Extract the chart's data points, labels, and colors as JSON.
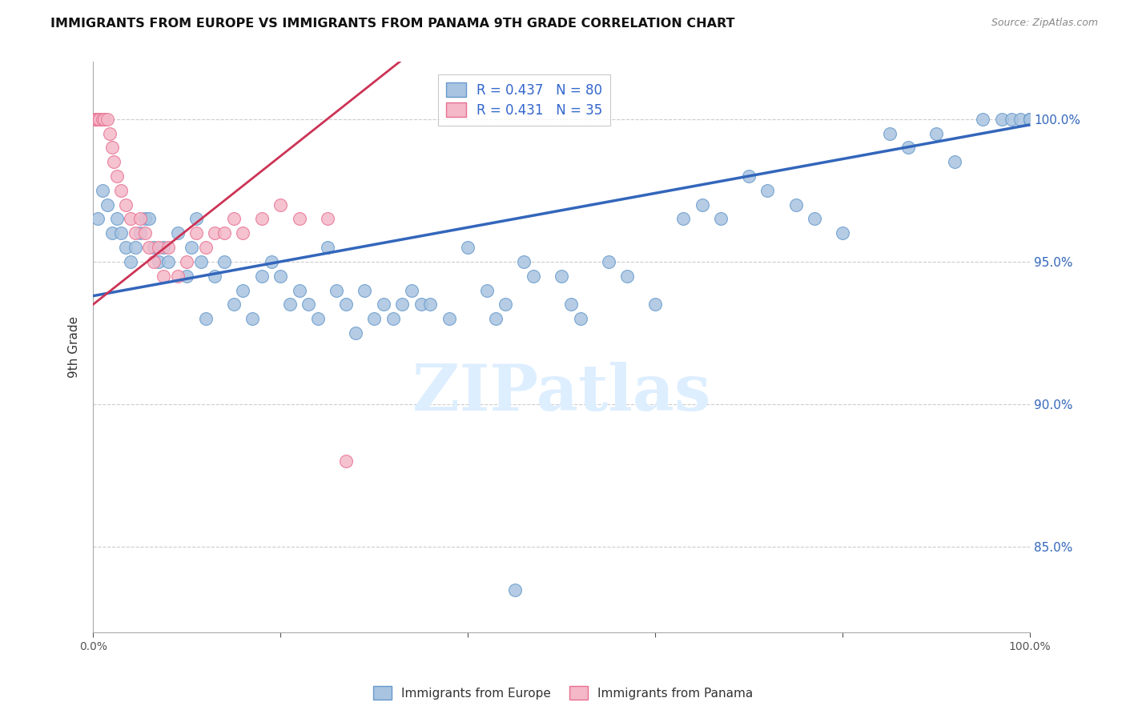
{
  "title": "IMMIGRANTS FROM EUROPE VS IMMIGRANTS FROM PANAMA 9TH GRADE CORRELATION CHART",
  "source": "Source: ZipAtlas.com",
  "ylabel": "9th Grade",
  "xlim": [
    0.0,
    100.0
  ],
  "ylim": [
    82.0,
    102.0
  ],
  "yticks": [
    85.0,
    90.0,
    95.0,
    100.0
  ],
  "ytick_labels": [
    "85.0%",
    "90.0%",
    "95.0%",
    "100.0%"
  ],
  "xticks": [
    0.0,
    20.0,
    40.0,
    60.0,
    80.0,
    100.0
  ],
  "legend_blue_label": "R = 0.437   N = 80",
  "legend_pink_label": "R = 0.431   N = 35",
  "blue_color": "#a8c4e0",
  "pink_color": "#f4b8c8",
  "blue_edge": "#6699cc",
  "pink_edge": "#e87090",
  "trend_blue": "#3366bb",
  "trend_pink": "#cc3355",
  "watermark": "ZIPatlas",
  "watermark_color": "#ddeeff",
  "blue_x": [
    0.5,
    1.0,
    1.5,
    2.0,
    2.5,
    3.0,
    3.5,
    4.0,
    4.5,
    5.0,
    5.5,
    6.0,
    6.5,
    7.0,
    7.5,
    8.0,
    9.0,
    10.0,
    10.5,
    11.0,
    11.5,
    12.0,
    13.0,
    14.0,
    15.0,
    16.0,
    17.0,
    18.0,
    19.0,
    20.0,
    21.0,
    22.0,
    23.0,
    24.0,
    25.0,
    26.0,
    27.0,
    28.0,
    29.0,
    30.0,
    31.0,
    32.0,
    33.0,
    34.0,
    35.0,
    36.0,
    38.0,
    40.0,
    42.0,
    43.0,
    44.0,
    45.0,
    46.0,
    47.0,
    50.0,
    51.0,
    52.0,
    55.0,
    57.0,
    60.0,
    63.0,
    65.0,
    67.0,
    70.0,
    72.0,
    75.0,
    77.0,
    80.0,
    85.0,
    87.0,
    90.0,
    92.0,
    95.0,
    97.0,
    98.0,
    99.0,
    100.0,
    100.0,
    100.0,
    100.0
  ],
  "blue_y": [
    96.5,
    97.5,
    97.0,
    96.0,
    96.5,
    96.0,
    95.5,
    95.0,
    95.5,
    96.0,
    96.5,
    96.5,
    95.5,
    95.0,
    95.5,
    95.0,
    96.0,
    94.5,
    95.5,
    96.5,
    95.0,
    93.0,
    94.5,
    95.0,
    93.5,
    94.0,
    93.0,
    94.5,
    95.0,
    94.5,
    93.5,
    94.0,
    93.5,
    93.0,
    95.5,
    94.0,
    93.5,
    92.5,
    94.0,
    93.0,
    93.5,
    93.0,
    93.5,
    94.0,
    93.5,
    93.5,
    93.0,
    95.5,
    94.0,
    93.0,
    93.5,
    83.5,
    95.0,
    94.5,
    94.5,
    93.5,
    93.0,
    95.0,
    94.5,
    93.5,
    96.5,
    97.0,
    96.5,
    98.0,
    97.5,
    97.0,
    96.5,
    96.0,
    99.5,
    99.0,
    99.5,
    98.5,
    100.0,
    100.0,
    100.0,
    100.0,
    100.0,
    100.0,
    100.0,
    100.0
  ],
  "pink_x": [
    0.2,
    0.3,
    0.5,
    0.7,
    1.0,
    1.2,
    1.5,
    1.8,
    2.0,
    2.2,
    2.5,
    3.0,
    3.5,
    4.0,
    4.5,
    5.0,
    5.5,
    6.0,
    6.5,
    7.0,
    7.5,
    8.0,
    9.0,
    10.0,
    11.0,
    12.0,
    13.0,
    14.0,
    15.0,
    16.0,
    18.0,
    20.0,
    22.0,
    25.0,
    27.0
  ],
  "pink_y": [
    100.0,
    100.0,
    100.0,
    100.0,
    100.0,
    100.0,
    100.0,
    99.5,
    99.0,
    98.5,
    98.0,
    97.5,
    97.0,
    96.5,
    96.0,
    96.5,
    96.0,
    95.5,
    95.0,
    95.5,
    94.5,
    95.5,
    94.5,
    95.0,
    96.0,
    95.5,
    96.0,
    96.0,
    96.5,
    96.0,
    96.5,
    97.0,
    96.5,
    96.5,
    88.0
  ]
}
